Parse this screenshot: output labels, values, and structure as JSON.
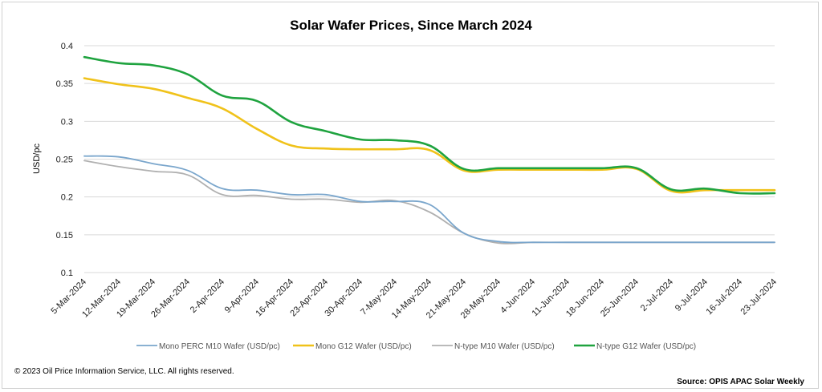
{
  "chart_data": {
    "type": "line",
    "title": "Solar Wafer Prices, Since March 2024",
    "ylabel": "USD/pc",
    "xlabel": "",
    "ylim": [
      0.1,
      0.4
    ],
    "yticks": [
      "0.1",
      "0.15",
      "0.2",
      "0.25",
      "0.3",
      "0.35",
      "0.4"
    ],
    "grid": true,
    "legend_position": "bottom",
    "categories": [
      "5-Mar-2024",
      "12-Mar-2024",
      "19-Mar-2024",
      "26-Mar-2024",
      "2-Apr-2024",
      "9-Apr-2024",
      "16-Apr-2024",
      "23-Apr-2024",
      "30-Apr-2024",
      "7-May-2024",
      "14-May-2024",
      "21-May-2024",
      "28-May-2024",
      "4-Jun-2024",
      "11-Jun-2024",
      "18-Jun-2024",
      "25-Jun-2024",
      "2-Jul-2024",
      "9-Jul-2024",
      "16-Jul-2024",
      "23-Jul-2024"
    ],
    "series": [
      {
        "name": "Mono PERC M10 Wafer (USD/pc)",
        "color": "#7aa6cc",
        "values": [
          0.254,
          0.253,
          0.244,
          0.235,
          0.211,
          0.209,
          0.203,
          0.203,
          0.194,
          0.194,
          0.19,
          0.152,
          0.141,
          0.14,
          0.14,
          0.14,
          0.14,
          0.14,
          0.14,
          0.14,
          0.14
        ]
      },
      {
        "name": "Mono G12 Wafer (USD/pc)",
        "color": "#f0c21a",
        "values": [
          0.357,
          0.349,
          0.343,
          0.331,
          0.317,
          0.29,
          0.268,
          0.264,
          0.263,
          0.263,
          0.262,
          0.235,
          0.236,
          0.236,
          0.236,
          0.236,
          0.237,
          0.208,
          0.209,
          0.209,
          0.209
        ]
      },
      {
        "name": "N-type M10 Wafer (USD/pc)",
        "color": "#b0b0b0",
        "values": [
          0.248,
          0.24,
          0.234,
          0.229,
          0.203,
          0.202,
          0.197,
          0.197,
          0.193,
          0.195,
          0.18,
          0.152,
          0.139,
          0.14,
          0.14,
          0.14,
          0.14,
          0.14,
          0.14,
          0.14,
          0.14
        ]
      },
      {
        "name": "N-type G12 Wafer (USD/pc)",
        "color": "#1fa33f",
        "values": [
          0.385,
          0.377,
          0.374,
          0.362,
          0.334,
          0.327,
          0.299,
          0.287,
          0.276,
          0.275,
          0.268,
          0.237,
          0.238,
          0.238,
          0.238,
          0.238,
          0.238,
          0.21,
          0.211,
          0.205,
          0.205
        ]
      }
    ]
  },
  "footer": {
    "copyright": "© 2023 Oil Price Information Service, LLC. All rights reserved.",
    "source": "Source: OPIS APAC Solar Weekly"
  }
}
